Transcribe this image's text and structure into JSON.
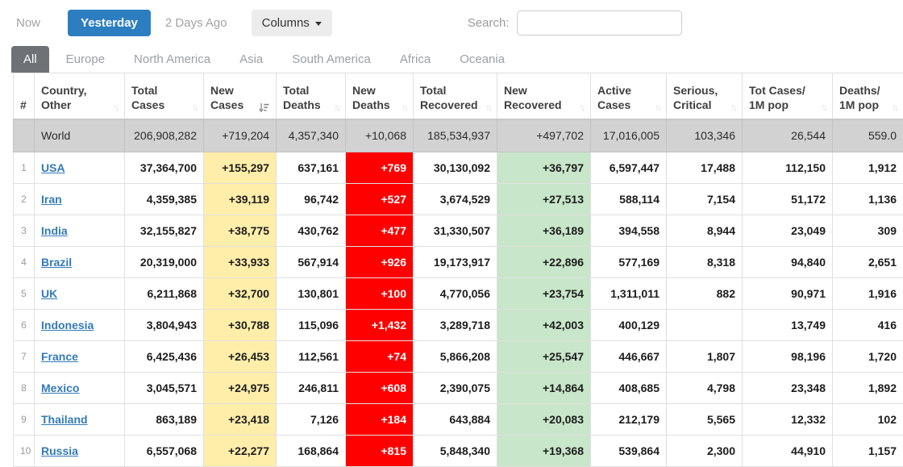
{
  "toolbar": {
    "now_label": "Now",
    "yesterday_label": "Yesterday",
    "two_days_label": "2 Days Ago",
    "columns_label": "Columns",
    "search_label": "Search:",
    "search_value": ""
  },
  "tabs": [
    {
      "label": "All",
      "active": true
    },
    {
      "label": "Europe",
      "active": false
    },
    {
      "label": "North America",
      "active": false
    },
    {
      "label": "Asia",
      "active": false
    },
    {
      "label": "South America",
      "active": false
    },
    {
      "label": "Africa",
      "active": false
    },
    {
      "label": "Oceania",
      "active": false
    }
  ],
  "colors": {
    "accent_blue": "#2d7ec0",
    "active_tab_gray": "#6e7277",
    "link_blue": "#337ab7",
    "new_cases_yellow": "#ffeeaa",
    "new_deaths_red": "#ff0000",
    "new_recovered_green": "#c8e6c9",
    "world_row_gray": "#d2d2d2"
  },
  "table": {
    "columns": [
      {
        "key": "rank",
        "label": "#",
        "sort": "none"
      },
      {
        "key": "country",
        "label": "Country,\nOther",
        "sort": "both"
      },
      {
        "key": "total_cases",
        "label": "Total\nCases",
        "sort": "both"
      },
      {
        "key": "new_cases",
        "label": "New\nCases",
        "sort": "desc"
      },
      {
        "key": "total_deaths",
        "label": "Total\nDeaths",
        "sort": "both"
      },
      {
        "key": "new_deaths",
        "label": "New\nDeaths",
        "sort": "both"
      },
      {
        "key": "total_recovered",
        "label": "Total\nRecovered",
        "sort": "both"
      },
      {
        "key": "new_recovered",
        "label": "New\nRecovered",
        "sort": "both"
      },
      {
        "key": "active_cases",
        "label": "Active\nCases",
        "sort": "both"
      },
      {
        "key": "serious_critical",
        "label": "Serious,\nCritical",
        "sort": "both"
      },
      {
        "key": "tot_cases_1m",
        "label": "Tot Cases/\n1M pop",
        "sort": "both"
      },
      {
        "key": "deaths_1m",
        "label": "Deaths/\n1M pop",
        "sort": "both"
      }
    ],
    "world_row": {
      "rank": "",
      "country": "World",
      "world": true,
      "values": [
        "206,908,282",
        "+719,204",
        "4,357,340",
        "+10,068",
        "185,534,937",
        "+497,702",
        "17,016,005",
        "103,346",
        "26,544",
        "559.0"
      ]
    },
    "rows": [
      {
        "rank": "1",
        "country": "USA",
        "values": [
          "37,364,700",
          "+155,297",
          "637,161",
          "+769",
          "30,130,092",
          "+36,797",
          "6,597,447",
          "17,488",
          "112,150",
          "1,912"
        ]
      },
      {
        "rank": "2",
        "country": "Iran",
        "values": [
          "4,359,385",
          "+39,119",
          "96,742",
          "+527",
          "3,674,529",
          "+27,513",
          "588,114",
          "7,154",
          "51,172",
          "1,136"
        ]
      },
      {
        "rank": "3",
        "country": "India",
        "values": [
          "32,155,827",
          "+38,775",
          "430,762",
          "+477",
          "31,330,507",
          "+36,189",
          "394,558",
          "8,944",
          "23,049",
          "309"
        ]
      },
      {
        "rank": "4",
        "country": "Brazil",
        "values": [
          "20,319,000",
          "+33,933",
          "567,914",
          "+926",
          "19,173,917",
          "+22,896",
          "577,169",
          "8,318",
          "94,840",
          "2,651"
        ]
      },
      {
        "rank": "5",
        "country": "UK",
        "values": [
          "6,211,868",
          "+32,700",
          "130,801",
          "+100",
          "4,770,056",
          "+23,754",
          "1,311,011",
          "882",
          "90,971",
          "1,916"
        ]
      },
      {
        "rank": "6",
        "country": "Indonesia",
        "values": [
          "3,804,943",
          "+30,788",
          "115,096",
          "+1,432",
          "3,289,718",
          "+42,003",
          "400,129",
          "",
          "13,749",
          "416"
        ]
      },
      {
        "rank": "7",
        "country": "France",
        "values": [
          "6,425,436",
          "+26,453",
          "112,561",
          "+74",
          "5,866,208",
          "+25,547",
          "446,667",
          "1,807",
          "98,196",
          "1,720"
        ]
      },
      {
        "rank": "8",
        "country": "Mexico",
        "values": [
          "3,045,571",
          "+24,975",
          "246,811",
          "+608",
          "2,390,075",
          "+14,864",
          "408,685",
          "4,798",
          "23,348",
          "1,892"
        ]
      },
      {
        "rank": "9",
        "country": "Thailand",
        "values": [
          "863,189",
          "+23,418",
          "7,126",
          "+184",
          "643,884",
          "+20,083",
          "212,179",
          "5,565",
          "12,332",
          "102"
        ]
      },
      {
        "rank": "10",
        "country": "Russia",
        "values": [
          "6,557,068",
          "+22,277",
          "168,864",
          "+815",
          "5,848,340",
          "+19,368",
          "539,864",
          "2,300",
          "44,910",
          "1,157"
        ]
      }
    ]
  }
}
